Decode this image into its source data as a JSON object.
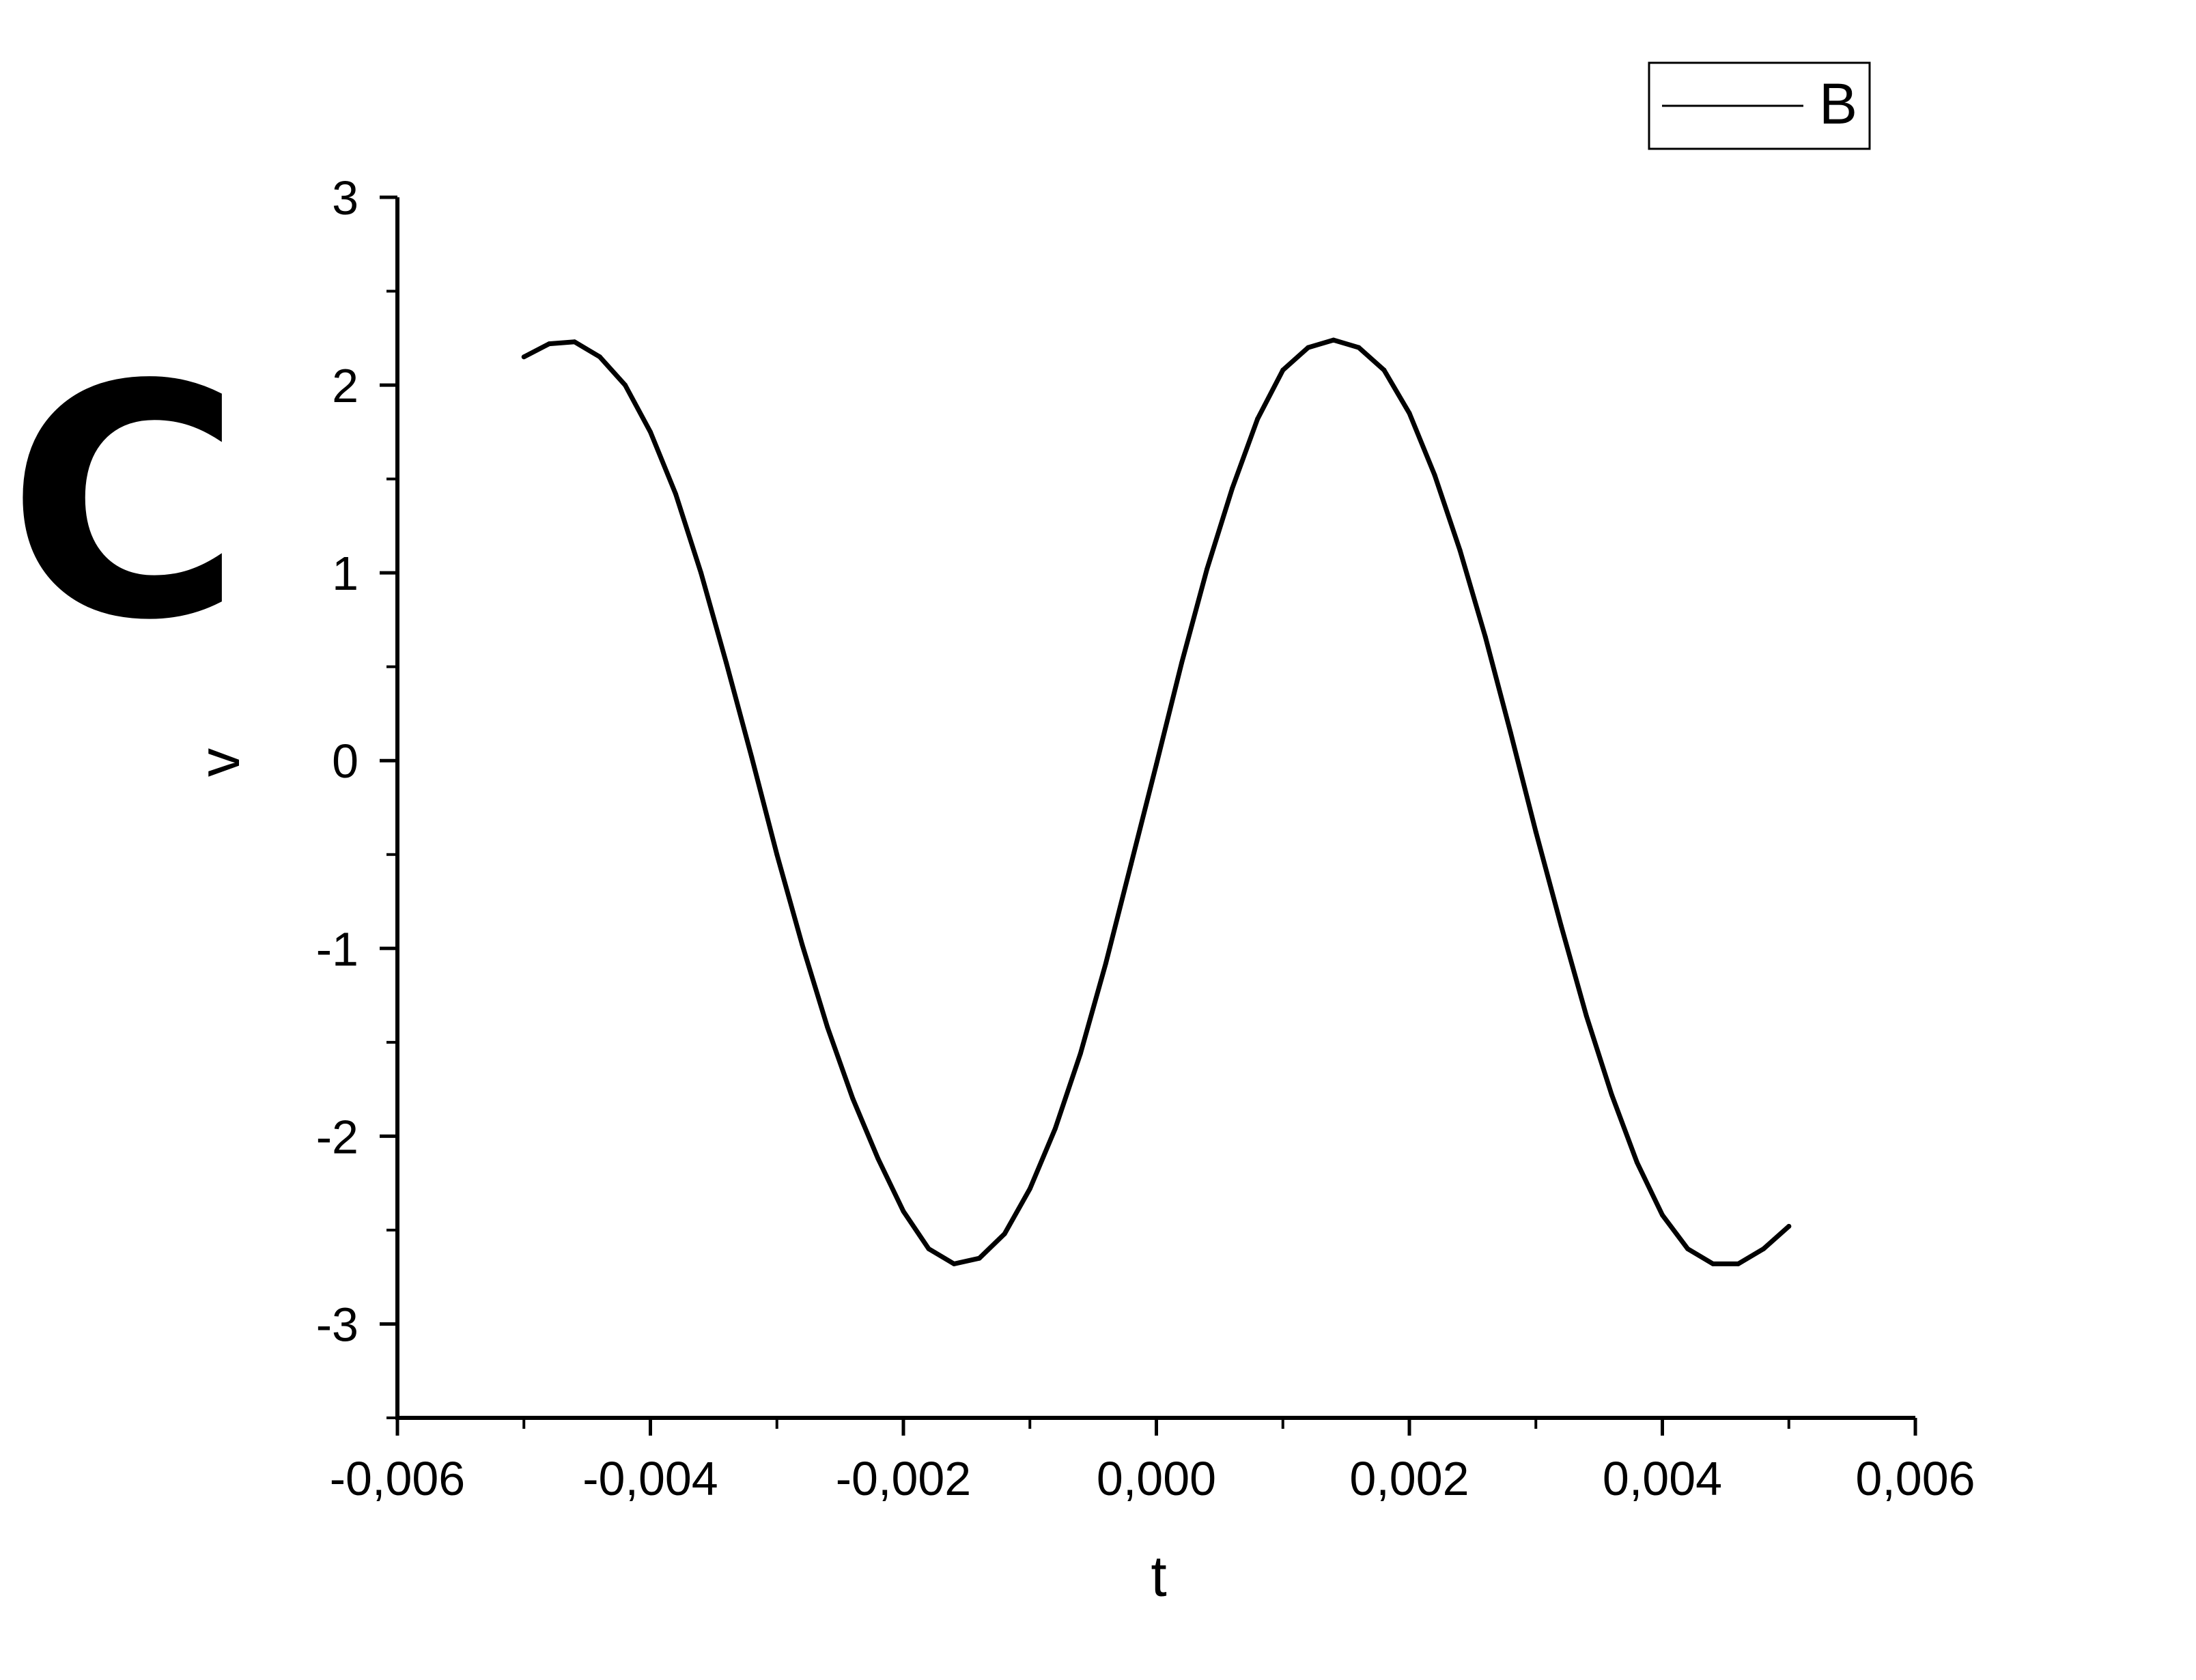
{
  "panel_label": "C",
  "chart_data": {
    "type": "line",
    "xlabel": "t",
    "ylabel": "v",
    "xlim": [
      -0.006,
      0.006
    ],
    "ylim": [
      -3.5,
      3
    ],
    "x_ticks": [
      {
        "value": -0.006,
        "label": "-0,006"
      },
      {
        "value": -0.004,
        "label": "-0,004"
      },
      {
        "value": -0.002,
        "label": "-0,002"
      },
      {
        "value": 0.0,
        "label": "0,000"
      },
      {
        "value": 0.002,
        "label": "0,002"
      },
      {
        "value": 0.004,
        "label": "0,004"
      },
      {
        "value": 0.006,
        "label": "0,006"
      }
    ],
    "x_minor_ticks": [
      -0.005,
      -0.003,
      -0.001,
      0.001,
      0.003,
      0.005
    ],
    "y_ticks": [
      {
        "value": 3,
        "label": "3"
      },
      {
        "value": 2,
        "label": "2"
      },
      {
        "value": 1,
        "label": "1"
      },
      {
        "value": 0,
        "label": "0"
      },
      {
        "value": -1,
        "label": "-1"
      },
      {
        "value": -2,
        "label": "-2"
      },
      {
        "value": -3,
        "label": "-3"
      }
    ],
    "y_minor_ticks": [
      2.5,
      1.5,
      0.5,
      -0.5,
      -1.5,
      -2.5,
      -3.5
    ],
    "grid": false,
    "legend_position": "top-right",
    "series": [
      {
        "name": "B",
        "color": "#000000",
        "x": [
          -0.005,
          -0.0048,
          -0.0046,
          -0.0044,
          -0.0042,
          -0.004,
          -0.0038,
          -0.0036,
          -0.0034,
          -0.0032,
          -0.003,
          -0.0028,
          -0.0026,
          -0.0024,
          -0.0022,
          -0.002,
          -0.0018,
          -0.0016,
          -0.0014,
          -0.0012,
          -0.001,
          -0.0008,
          -0.0006,
          -0.0004,
          -0.0002,
          0.0,
          0.0002,
          0.0004,
          0.0006,
          0.0008,
          0.001,
          0.0012,
          0.0014,
          0.0016,
          0.0018,
          0.002,
          0.0022,
          0.0024,
          0.0026,
          0.0028,
          0.003,
          0.0032,
          0.0034,
          0.0036,
          0.0038,
          0.004,
          0.0042,
          0.0044,
          0.0046,
          0.0048,
          0.005
        ],
        "y": [
          2.15,
          2.22,
          2.23,
          2.15,
          2.0,
          1.75,
          1.42,
          1.0,
          0.52,
          0.02,
          -0.5,
          -0.98,
          -1.42,
          -1.8,
          -2.12,
          -2.4,
          -2.6,
          -2.68,
          -2.65,
          -2.52,
          -2.28,
          -1.96,
          -1.56,
          -1.08,
          -0.55,
          -0.02,
          0.52,
          1.02,
          1.45,
          1.82,
          2.08,
          2.2,
          2.24,
          2.2,
          2.08,
          1.85,
          1.52,
          1.12,
          0.66,
          0.15,
          -0.38,
          -0.88,
          -1.36,
          -1.78,
          -2.14,
          -2.42,
          -2.6,
          -2.68,
          -2.68,
          -2.6,
          -2.48
        ]
      }
    ]
  }
}
